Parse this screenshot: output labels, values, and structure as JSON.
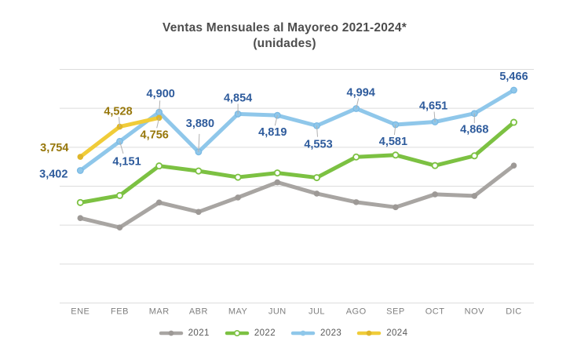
{
  "title": {
    "line1": "Ventas Mensuales al Mayoreo 2021-2024*",
    "line2": "(unidades)"
  },
  "colors": {
    "background": "#ffffff",
    "gridline": "#dcdcdc",
    "title_text": "#4d4d4d",
    "axis_text": "#7f7f7f",
    "legend_text": "#595959",
    "leader_line": "#b0b0b0"
  },
  "chart_data": {
    "type": "line",
    "categories": [
      "ENE",
      "FEB",
      "MAR",
      "ABR",
      "MAY",
      "JUN",
      "JUL",
      "AGO",
      "SEP",
      "OCT",
      "NOV",
      "DIC"
    ],
    "title": "Ventas Mensuales al Mayoreo 2021-2024* (unidades)",
    "xlabel": "",
    "ylabel": "",
    "ylim": [
      0,
      6000
    ],
    "y_gridline_step": 1000,
    "y_tick_labels_shown": false,
    "grid": "horizontal",
    "legend_position": "bottom",
    "series": [
      {
        "name": "2021",
        "color": "#a8a5a2",
        "marker_color": "#9d9996",
        "marker": "solid",
        "labels_shown": false,
        "values_estimated_from_pixels": true,
        "values": [
          2180,
          1940,
          2580,
          2340,
          2710,
          3100,
          2810,
          2590,
          2460,
          2790,
          2750,
          3530
        ]
      },
      {
        "name": "2022",
        "color": "#7cc142",
        "marker_color": "#ffffff",
        "marker": "ring",
        "labels_shown": false,
        "values_estimated_from_pixels": true,
        "values": [
          2580,
          2760,
          3520,
          3390,
          3230,
          3340,
          3220,
          3750,
          3800,
          3530,
          3780,
          4640
        ]
      },
      {
        "name": "2023",
        "color": "#8fc7ea",
        "marker_color": "#8fc7ea",
        "marker_ring_color": "#79b9e4",
        "marker": "solid",
        "labels_shown": true,
        "label_color": "#2e5b9c",
        "values": [
          3402,
          4151,
          4900,
          3880,
          4854,
          4819,
          4553,
          4994,
          4581,
          4651,
          4868,
          5466
        ],
        "labels": [
          "3,402",
          "4,151",
          "4,900",
          "3,880",
          "4,854",
          "4,819",
          "4,553",
          "4,994",
          "4,581",
          "4,651",
          "4,868",
          "5,466"
        ],
        "label_offsets": [
          [
            -34,
            4
          ],
          [
            9,
            25
          ],
          [
            2,
            -24
          ],
          [
            2,
            -37
          ],
          [
            0,
            -21
          ],
          [
            -6,
            21
          ],
          [
            2,
            23
          ],
          [
            6,
            -21
          ],
          [
            -3,
            21
          ],
          [
            -2,
            -21
          ],
          [
            0,
            20
          ],
          [
            0,
            -18
          ]
        ],
        "label_leaders": [
          false,
          true,
          true,
          true,
          true,
          true,
          true,
          true,
          true,
          true,
          true,
          false
        ]
      },
      {
        "name": "2024",
        "color": "#f0cc39",
        "marker_color": "#dfb62a",
        "marker": "solid",
        "labels_shown": true,
        "label_color": "#97770a",
        "values": [
          3754,
          4528,
          4756
        ],
        "labels": [
          "3,754",
          "4,528",
          "4,756"
        ],
        "label_offsets": [
          [
            -33,
            -12
          ],
          [
            -2,
            -20
          ],
          [
            -6,
            21
          ]
        ],
        "label_leaders": [
          false,
          true,
          true
        ]
      }
    ]
  }
}
